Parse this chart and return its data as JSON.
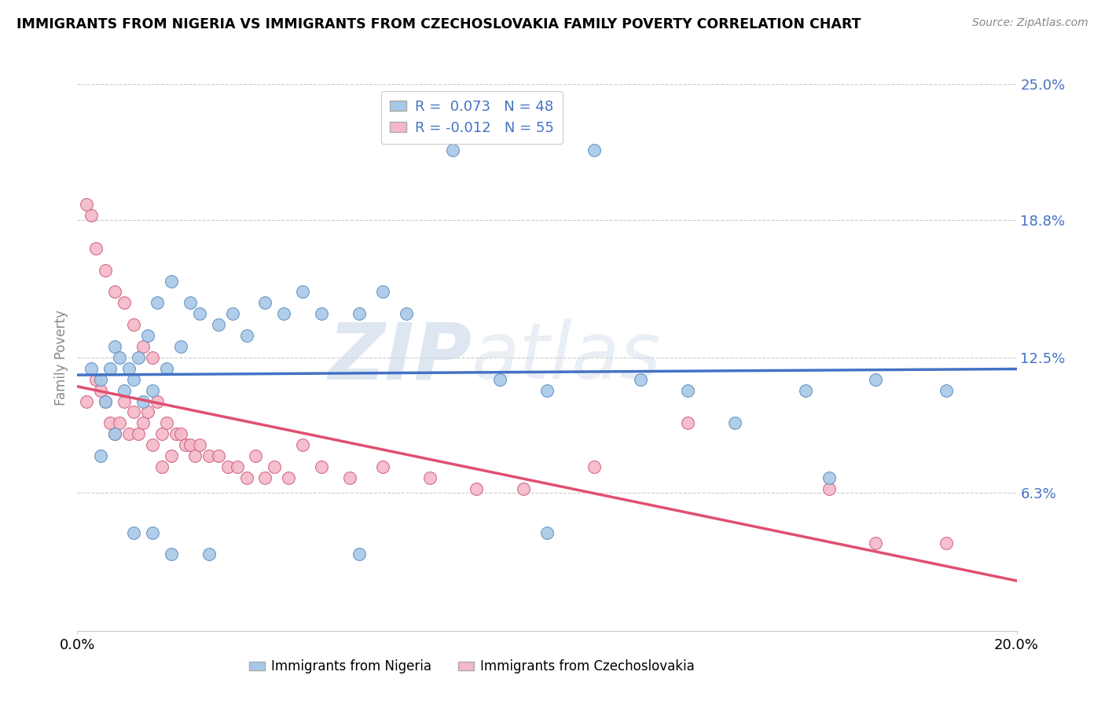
{
  "title": "IMMIGRANTS FROM NIGERIA VS IMMIGRANTS FROM CZECHOSLOVAKIA FAMILY POVERTY CORRELATION CHART",
  "source": "Source: ZipAtlas.com",
  "ylabel": "Family Poverty",
  "xmin": 0.0,
  "xmax": 0.2,
  "ymin": 0.0,
  "ymax": 0.25,
  "ytick_vals": [
    0.0,
    0.063,
    0.125,
    0.188,
    0.25
  ],
  "ytick_labels": [
    "",
    "6.3%",
    "12.5%",
    "18.8%",
    "25.0%"
  ],
  "xtick_vals": [
    0.0,
    0.2
  ],
  "xtick_labels": [
    "0.0%",
    "20.0%"
  ],
  "legend_label1": "Immigrants from Nigeria",
  "legend_label2": "Immigrants from Czechoslovakia",
  "watermark": "ZIPatlas",
  "nigeria_color": "#a8c8e8",
  "nigeria_edge": "#6090c0",
  "czechoslovakia_color": "#f4b8c8",
  "czechoslovakia_edge": "#d06080",
  "nigeria_line_color": "#4472c4",
  "czechoslovakia_line_color": "#e05070",
  "leg_r1": "R =  0.073",
  "leg_n1": "N = 48",
  "leg_r2": "R = -0.012",
  "leg_n2": "N = 55",
  "nigeria_x": [
    0.003,
    0.005,
    0.006,
    0.007,
    0.008,
    0.009,
    0.01,
    0.011,
    0.012,
    0.013,
    0.014,
    0.015,
    0.016,
    0.017,
    0.019,
    0.02,
    0.022,
    0.024,
    0.026,
    0.03,
    0.033,
    0.036,
    0.04,
    0.044,
    0.048,
    0.052,
    0.06,
    0.065,
    0.07,
    0.08,
    0.09,
    0.1,
    0.11,
    0.12,
    0.13,
    0.14,
    0.155,
    0.16,
    0.17,
    0.185,
    0.005,
    0.008,
    0.012,
    0.016,
    0.02,
    0.028,
    0.06,
    0.1
  ],
  "nigeria_y": [
    0.12,
    0.115,
    0.105,
    0.12,
    0.13,
    0.125,
    0.11,
    0.12,
    0.115,
    0.125,
    0.105,
    0.135,
    0.11,
    0.15,
    0.12,
    0.16,
    0.13,
    0.15,
    0.145,
    0.14,
    0.145,
    0.135,
    0.15,
    0.145,
    0.155,
    0.145,
    0.145,
    0.155,
    0.145,
    0.22,
    0.115,
    0.11,
    0.22,
    0.115,
    0.11,
    0.095,
    0.11,
    0.07,
    0.115,
    0.11,
    0.08,
    0.09,
    0.045,
    0.045,
    0.035,
    0.035,
    0.035,
    0.045
  ],
  "czechoslovakia_x": [
    0.002,
    0.003,
    0.004,
    0.005,
    0.006,
    0.007,
    0.008,
    0.009,
    0.01,
    0.011,
    0.012,
    0.013,
    0.014,
    0.015,
    0.016,
    0.017,
    0.018,
    0.019,
    0.02,
    0.021,
    0.022,
    0.023,
    0.024,
    0.025,
    0.026,
    0.028,
    0.03,
    0.032,
    0.034,
    0.036,
    0.038,
    0.04,
    0.042,
    0.045,
    0.048,
    0.052,
    0.058,
    0.065,
    0.075,
    0.085,
    0.095,
    0.11,
    0.13,
    0.16,
    0.17,
    0.002,
    0.004,
    0.006,
    0.008,
    0.01,
    0.012,
    0.014,
    0.016,
    0.018,
    0.185
  ],
  "czechoslovakia_y": [
    0.105,
    0.19,
    0.115,
    0.11,
    0.105,
    0.095,
    0.09,
    0.095,
    0.105,
    0.09,
    0.1,
    0.09,
    0.095,
    0.1,
    0.085,
    0.105,
    0.09,
    0.095,
    0.08,
    0.09,
    0.09,
    0.085,
    0.085,
    0.08,
    0.085,
    0.08,
    0.08,
    0.075,
    0.075,
    0.07,
    0.08,
    0.07,
    0.075,
    0.07,
    0.085,
    0.075,
    0.07,
    0.075,
    0.07,
    0.065,
    0.065,
    0.075,
    0.095,
    0.065,
    0.04,
    0.195,
    0.175,
    0.165,
    0.155,
    0.15,
    0.14,
    0.13,
    0.125,
    0.075,
    0.04
  ]
}
